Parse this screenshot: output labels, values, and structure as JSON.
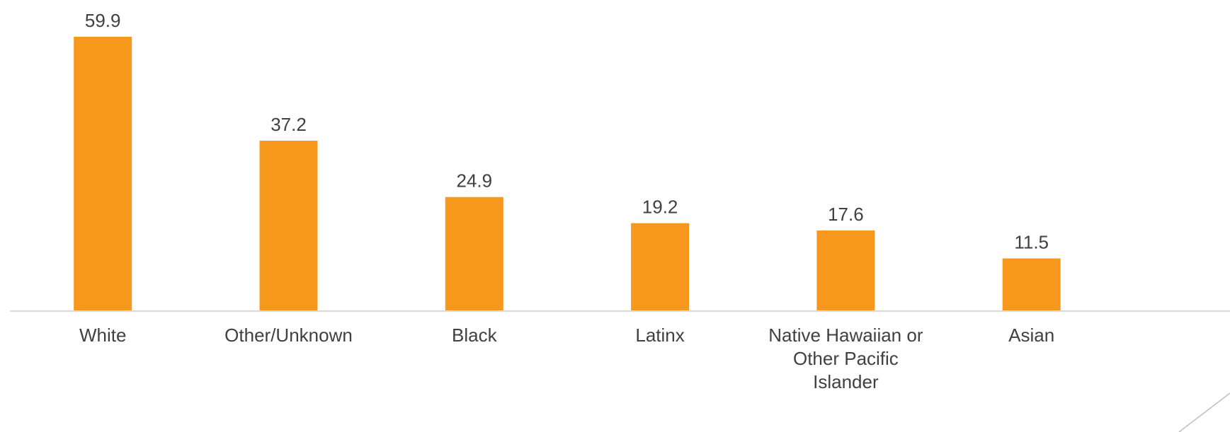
{
  "chart_data": {
    "type": "bar",
    "categories": [
      "White",
      "Other/Unknown",
      "Black",
      "Latinx",
      "Native Hawaiian or Other Pacific Islander",
      "Asian"
    ],
    "category_label_lines": [
      [
        "White"
      ],
      [
        "Other/Unknown"
      ],
      [
        "Black"
      ],
      [
        "Latinx"
      ],
      [
        "Native Hawaiian or",
        "Other Pacific",
        "Islander"
      ],
      [
        "Asian"
      ]
    ],
    "values": [
      59.9,
      37.2,
      24.9,
      19.2,
      17.6,
      11.5
    ],
    "data_labels": [
      "59.9",
      "37.2",
      "24.9",
      "19.2",
      "17.6",
      "11.5"
    ],
    "ylim": [
      0,
      59.9
    ],
    "grid": false,
    "legend": "none",
    "bar_color": "#F7981D",
    "axis_color": "#D9D9D9",
    "text_color": "#404040"
  }
}
